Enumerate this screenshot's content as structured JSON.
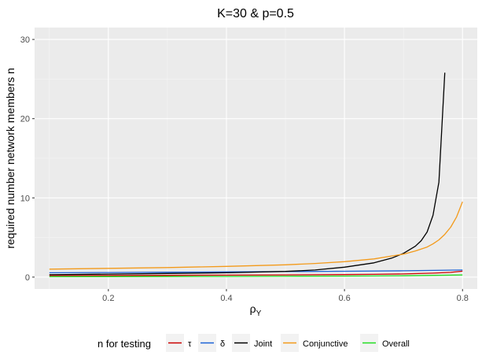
{
  "chart_data": {
    "type": "line",
    "title": "K=30 & p=0.5",
    "xlabel_main": "ρ",
    "xlabel_sub": "Y",
    "ylabel": "required number network members n",
    "xlim": [
      0.075,
      0.825
    ],
    "ylim": [
      -1.5,
      31.5
    ],
    "x_ticks": [
      0.2,
      0.4,
      0.6,
      0.8
    ],
    "x_tick_labels": [
      "0.2",
      "0.4",
      "0.6",
      "0.8"
    ],
    "y_ticks": [
      0,
      10,
      20,
      30
    ],
    "y_tick_labels": [
      "0",
      "10",
      "20",
      "30"
    ],
    "grid": true,
    "legend": {
      "title": "n for testing",
      "position": "bottom",
      "entries": [
        "τ",
        "δ",
        "Joint",
        "Conjunctive",
        "Overall"
      ]
    },
    "series": [
      {
        "name": "τ",
        "color": "#cc0000",
        "x": [
          0.1,
          0.2,
          0.3,
          0.4,
          0.5,
          0.6,
          0.65,
          0.7,
          0.75,
          0.78,
          0.8
        ],
        "y": [
          0.2,
          0.2,
          0.22,
          0.25,
          0.28,
          0.32,
          0.35,
          0.4,
          0.5,
          0.6,
          0.75
        ]
      },
      {
        "name": "δ",
        "color": "#1c63d6",
        "x": [
          0.1,
          0.2,
          0.3,
          0.4,
          0.5,
          0.6,
          0.7,
          0.8
        ],
        "y": [
          0.55,
          0.58,
          0.62,
          0.66,
          0.7,
          0.74,
          0.8,
          0.9
        ]
      },
      {
        "name": "Joint",
        "color": "#000000",
        "x": [
          0.1,
          0.2,
          0.3,
          0.4,
          0.5,
          0.55,
          0.6,
          0.65,
          0.68,
          0.7,
          0.72,
          0.73,
          0.74,
          0.75,
          0.76,
          0.77
        ],
        "y": [
          0.3,
          0.38,
          0.46,
          0.55,
          0.72,
          0.9,
          1.25,
          1.8,
          2.4,
          3.0,
          3.9,
          4.6,
          5.7,
          7.8,
          12.0,
          25.8
        ]
      },
      {
        "name": "Conjunctive",
        "color": "#f39a1a",
        "x": [
          0.1,
          0.2,
          0.3,
          0.4,
          0.5,
          0.55,
          0.6,
          0.65,
          0.7,
          0.72,
          0.74,
          0.75,
          0.76,
          0.77,
          0.78,
          0.79,
          0.8
        ],
        "y": [
          1.0,
          1.1,
          1.2,
          1.35,
          1.55,
          1.72,
          1.95,
          2.3,
          2.9,
          3.3,
          3.8,
          4.2,
          4.7,
          5.4,
          6.3,
          7.6,
          9.5
        ]
      },
      {
        "name": "Overall",
        "color": "#22dd22",
        "x": [
          0.1,
          0.2,
          0.3,
          0.4,
          0.5,
          0.6,
          0.7,
          0.8
        ],
        "y": [
          0.05,
          0.06,
          0.07,
          0.08,
          0.1,
          0.13,
          0.17,
          0.27
        ]
      }
    ]
  }
}
